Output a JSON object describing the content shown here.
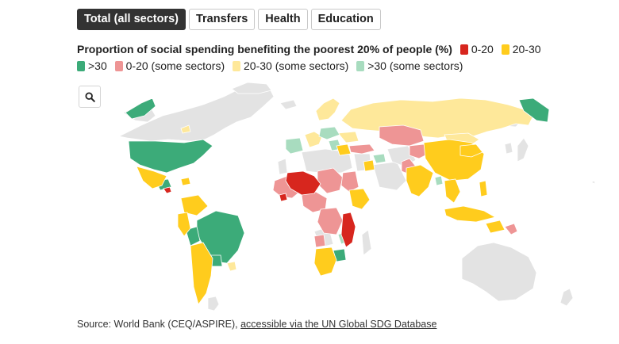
{
  "tabs": [
    {
      "label": "Total (all sectors)",
      "active": true
    },
    {
      "label": "Transfers",
      "active": false
    },
    {
      "label": "Health",
      "active": false
    },
    {
      "label": "Education",
      "active": false
    }
  ],
  "legend": {
    "title": "Proportion of social spending benefiting the poorest 20% of people (%)",
    "items": [
      {
        "label": "0-20",
        "color": "#d7261e"
      },
      {
        "label": "20-30",
        "color": "#ffcc1d"
      },
      {
        "label": ">30",
        "color": "#3cab79"
      },
      {
        "label": "0-20 (some sectors)",
        "color": "#ee9595"
      },
      {
        "label": "20-30 (some sectors)",
        "color": "#fee89a"
      },
      {
        "label": ">30 (some sectors)",
        "color": "#a8dcbf"
      }
    ],
    "nodata_color": "#e3e3e3"
  },
  "zoom": {
    "icon": "search-icon"
  },
  "source": {
    "prefix": "Source: World Bank (CEQ/ASPIRE), ",
    "link": "accessible via the UN Global SDG Database"
  }
}
